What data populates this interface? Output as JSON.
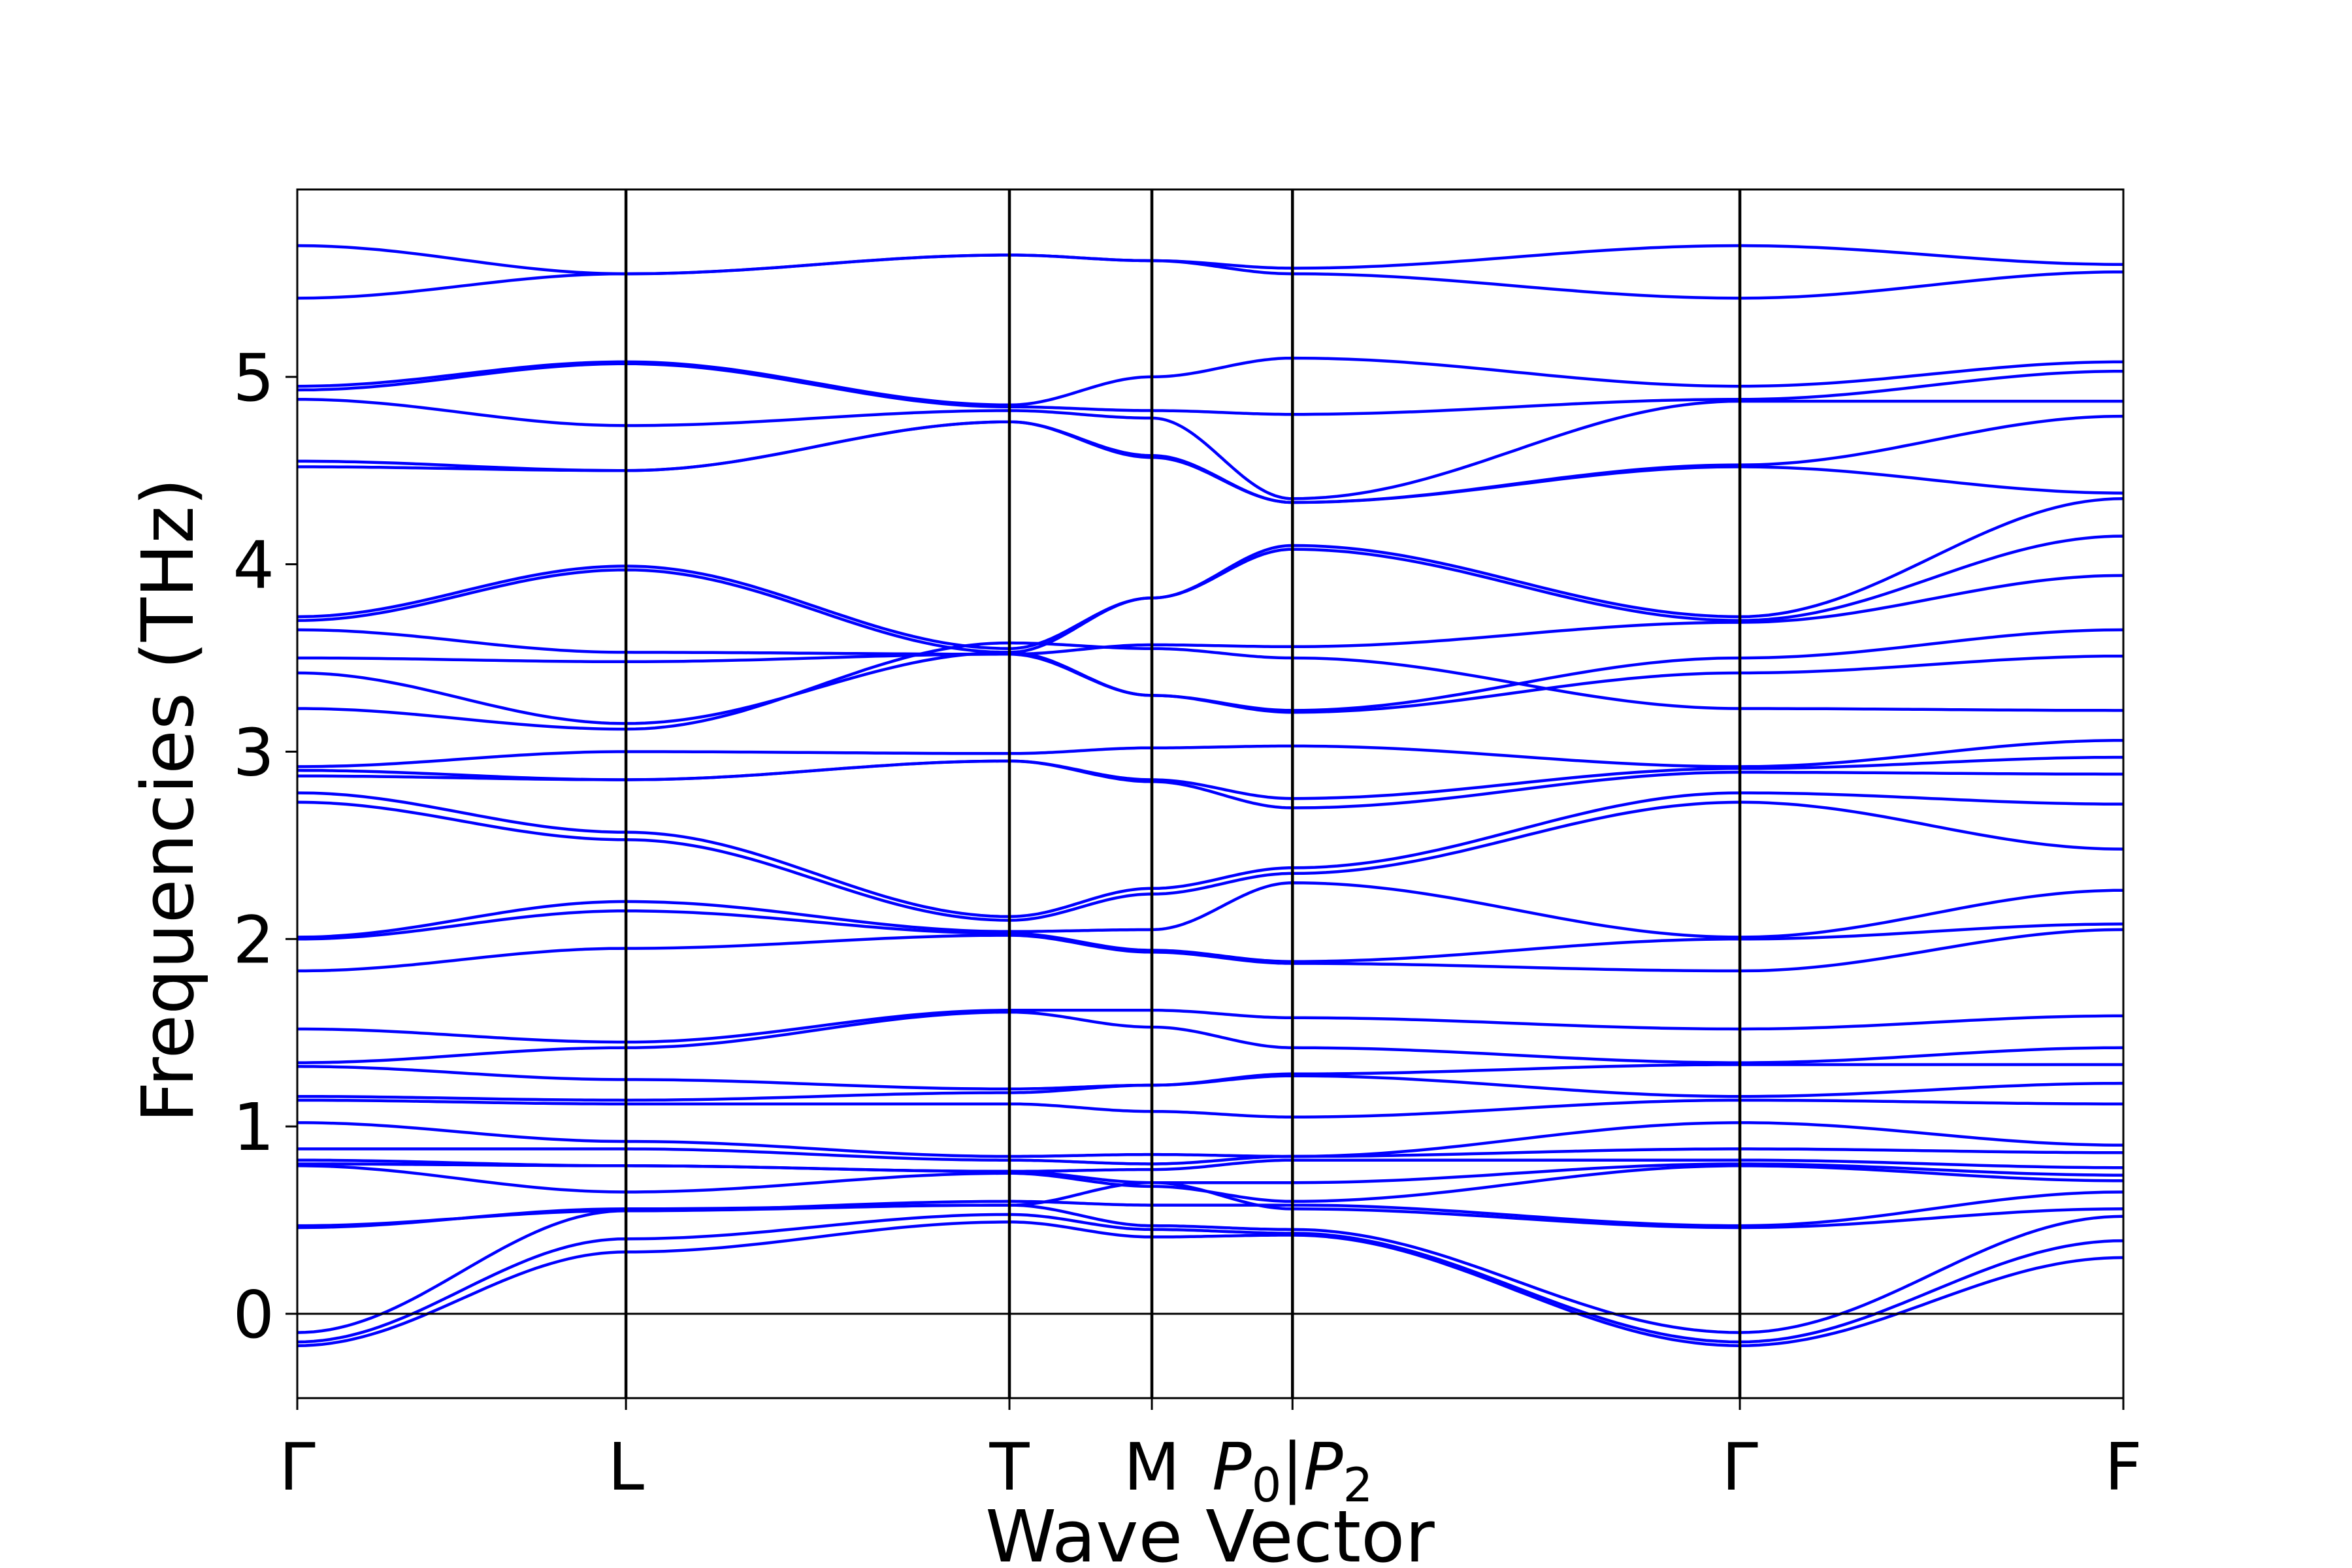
{
  "chart_data": {
    "type": "line",
    "title": "",
    "xlabel": "Wave Vector",
    "ylabel": "Frequencies (THz)",
    "ylim": [
      -0.45,
      6.0
    ],
    "yticks": [
      0,
      1,
      2,
      3,
      4,
      5
    ],
    "grid": false,
    "legend": "none",
    "line_color": "#0000ff",
    "zero_line": 0,
    "x_labels": [
      "Γ",
      "L",
      "T",
      "M",
      "P₀|P₂",
      "Γ",
      "F"
    ],
    "x": [
      0,
      1.8,
      3.9,
      4.68,
      5.45,
      7.9,
      10.0
    ],
    "series": [
      {
        "values": [
          5.7,
          5.55,
          5.65,
          5.62,
          5.55,
          5.42,
          5.56
        ]
      },
      {
        "values": [
          5.42,
          5.55,
          5.65,
          5.62,
          5.58,
          5.7,
          5.6
        ]
      },
      {
        "values": [
          4.95,
          5.08,
          4.85,
          5.0,
          5.1,
          4.95,
          5.08
        ]
      },
      {
        "values": [
          4.93,
          5.07,
          4.84,
          4.82,
          4.8,
          4.88,
          5.03
        ]
      },
      {
        "values": [
          4.88,
          4.74,
          4.82,
          4.78,
          4.35,
          4.87,
          4.87
        ]
      },
      {
        "values": [
          4.55,
          4.5,
          4.76,
          4.58,
          4.33,
          4.53,
          4.79
        ]
      },
      {
        "values": [
          4.52,
          4.5,
          4.76,
          4.57,
          4.33,
          4.52,
          4.38
        ]
      },
      {
        "values": [
          3.72,
          3.99,
          3.55,
          3.82,
          4.1,
          3.72,
          4.35
        ]
      },
      {
        "values": [
          3.7,
          3.97,
          3.53,
          3.82,
          4.08,
          3.7,
          4.15
        ]
      },
      {
        "values": [
          3.65,
          3.53,
          3.52,
          3.57,
          3.56,
          3.69,
          3.94
        ]
      },
      {
        "values": [
          3.5,
          3.48,
          3.52,
          3.3,
          3.22,
          3.5,
          3.65
        ]
      },
      {
        "values": [
          3.42,
          3.15,
          3.53,
          3.3,
          3.21,
          3.42,
          3.51
        ]
      },
      {
        "values": [
          3.23,
          3.12,
          3.58,
          3.55,
          3.5,
          3.23,
          3.22
        ]
      },
      {
        "values": [
          2.92,
          3.0,
          2.99,
          3.02,
          3.03,
          2.92,
          3.06
        ]
      },
      {
        "values": [
          2.9,
          2.85,
          2.95,
          2.85,
          2.75,
          2.91,
          2.97
        ]
      },
      {
        "values": [
          2.87,
          2.85,
          2.95,
          2.84,
          2.7,
          2.89,
          2.88
        ]
      },
      {
        "values": [
          2.78,
          2.57,
          2.12,
          2.27,
          2.38,
          2.78,
          2.72
        ]
      },
      {
        "values": [
          2.73,
          2.53,
          2.1,
          2.24,
          2.35,
          2.73,
          2.48
        ]
      },
      {
        "values": [
          2.01,
          2.2,
          2.04,
          2.05,
          2.3,
          2.01,
          2.26
        ]
      },
      {
        "values": [
          2.0,
          2.15,
          2.03,
          1.94,
          1.88,
          2.0,
          2.08
        ]
      },
      {
        "values": [
          1.83,
          1.95,
          2.02,
          1.93,
          1.87,
          1.83,
          2.05
        ]
      },
      {
        "values": [
          1.52,
          1.45,
          1.62,
          1.62,
          1.58,
          1.52,
          1.59
        ]
      },
      {
        "values": [
          1.34,
          1.42,
          1.61,
          1.53,
          1.42,
          1.34,
          1.42
        ]
      },
      {
        "values": [
          1.32,
          1.25,
          1.2,
          1.22,
          1.28,
          1.33,
          1.33
        ]
      },
      {
        "values": [
          1.16,
          1.14,
          1.18,
          1.22,
          1.27,
          1.16,
          1.23
        ]
      },
      {
        "values": [
          1.14,
          1.12,
          1.12,
          1.08,
          1.05,
          1.14,
          1.12
        ]
      },
      {
        "values": [
          1.02,
          0.92,
          0.84,
          0.85,
          0.84,
          1.02,
          0.9
        ]
      },
      {
        "values": [
          0.88,
          0.88,
          0.82,
          0.8,
          0.84,
          0.88,
          0.86
        ]
      },
      {
        "values": [
          0.82,
          0.79,
          0.76,
          0.77,
          0.82,
          0.82,
          0.78
        ]
      },
      {
        "values": [
          0.8,
          0.79,
          0.76,
          0.7,
          0.7,
          0.8,
          0.74
        ]
      },
      {
        "values": [
          0.79,
          0.65,
          0.75,
          0.68,
          0.6,
          0.79,
          0.71
        ]
      },
      {
        "values": [
          0.47,
          0.55,
          0.6,
          0.58,
          0.58,
          0.47,
          0.65
        ]
      },
      {
        "values": [
          0.46,
          0.56,
          0.58,
          0.7,
          0.56,
          0.46,
          0.56
        ]
      },
      {
        "values": [
          -0.1,
          0.55,
          0.58,
          0.47,
          0.45,
          -0.1,
          0.52
        ]
      },
      {
        "values": [
          -0.15,
          0.4,
          0.53,
          0.45,
          0.43,
          -0.15,
          0.39
        ]
      },
      {
        "values": [
          -0.17,
          0.33,
          0.49,
          0.41,
          0.42,
          -0.17,
          0.3
        ]
      }
    ]
  }
}
